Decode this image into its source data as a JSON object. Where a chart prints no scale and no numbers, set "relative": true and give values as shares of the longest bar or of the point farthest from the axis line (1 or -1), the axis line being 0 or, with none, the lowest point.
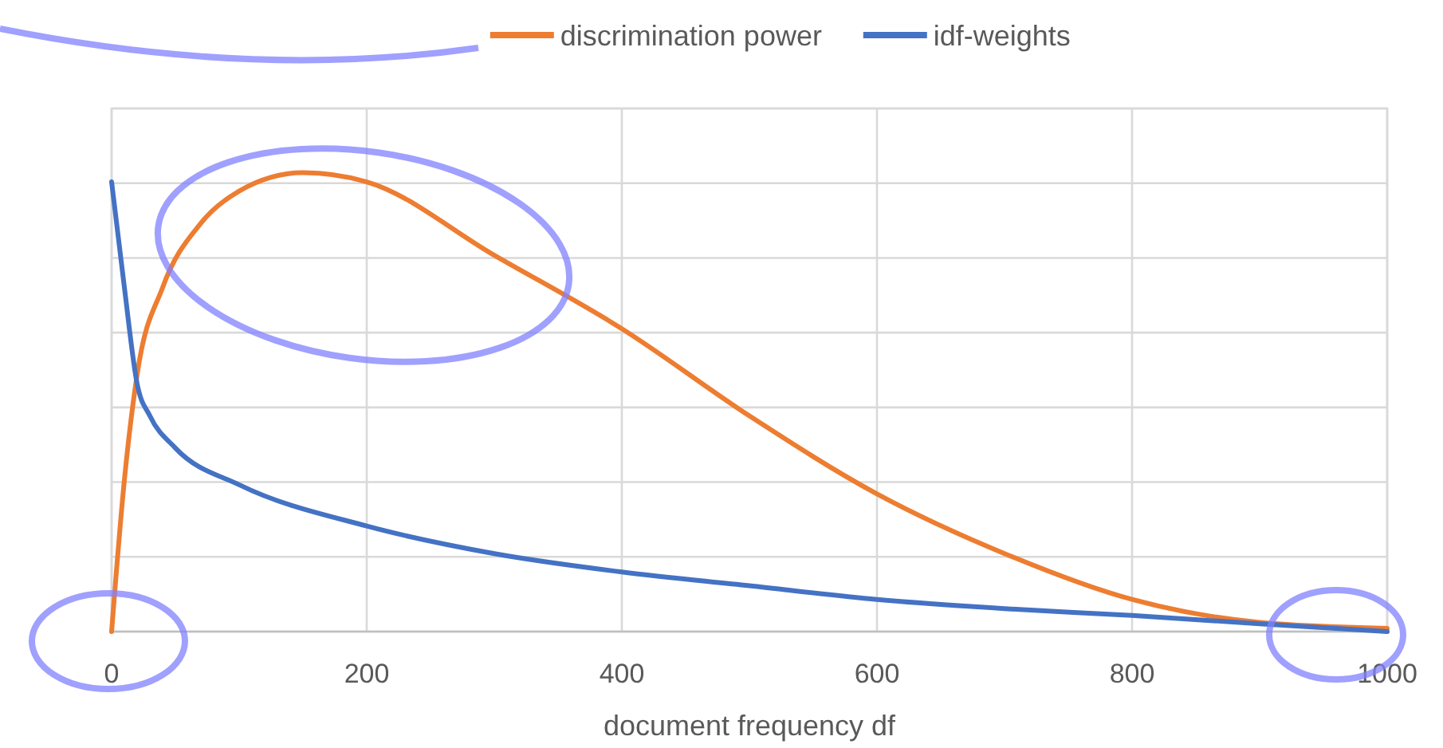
{
  "chart_data": {
    "type": "line",
    "relative": true,
    "xlabel": "document frequency df",
    "xlim": [
      0,
      1000
    ],
    "xticks": [
      0,
      200,
      400,
      600,
      800,
      1000
    ],
    "grid": true,
    "legend": "top",
    "series": [
      {
        "name": "discrimination power",
        "color": "#ed7d31",
        "x": [
          0,
          10,
          20,
          40,
          70,
          100,
          150,
          200,
          300,
          400,
          500,
          600,
          700,
          800,
          900,
          1000
        ],
        "values": [
          0,
          0.33,
          0.56,
          0.75,
          0.89,
          0.96,
          1,
          0.98,
          0.82,
          0.66,
          0.47,
          0.3,
          0.17,
          0.07,
          0.02,
          0.007
        ]
      },
      {
        "name": "idf-weights",
        "color": "#4472c4",
        "x": [
          0,
          10,
          20,
          30,
          50,
          100,
          200,
          300,
          400,
          500,
          600,
          700,
          800,
          900,
          1000
        ],
        "values": [
          0.98,
          0.75,
          0.54,
          0.47,
          0.4,
          0.32,
          0.23,
          0.17,
          0.13,
          0.1,
          0.07,
          0.05,
          0.035,
          0.017,
          0
        ]
      }
    ]
  }
}
